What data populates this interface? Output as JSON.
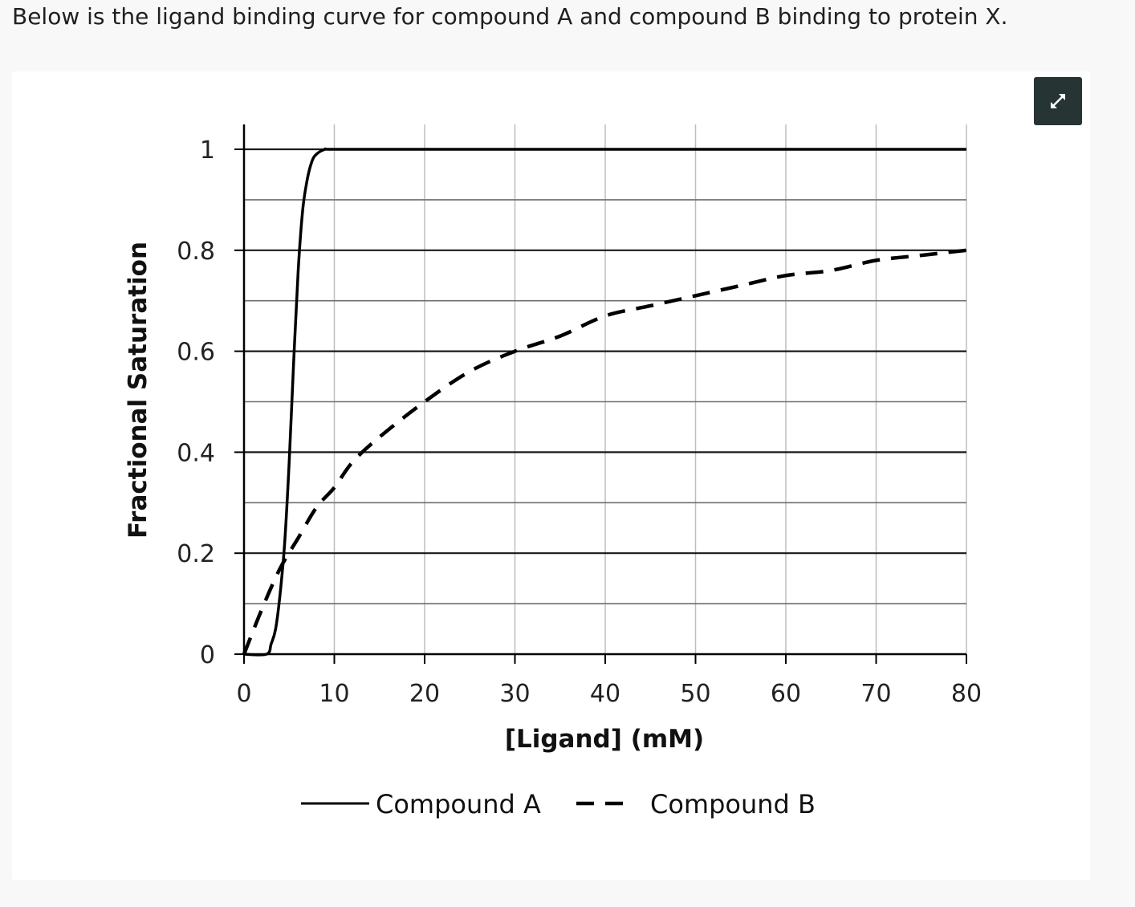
{
  "question": {
    "text": "Below is the ligand binding curve for compound A and compound B binding to protein X."
  },
  "expand_button": {
    "icon": "expand-arrows-icon"
  },
  "chart_data": {
    "type": "line",
    "xlabel": "[Ligand] (mM)",
    "ylabel": "Fractional Saturation",
    "xlim": [
      0,
      80
    ],
    "ylim": [
      0,
      1
    ],
    "x_ticks": [
      "0",
      "10",
      "20",
      "30",
      "40",
      "50",
      "60",
      "70",
      "80"
    ],
    "y_ticks": [
      "0",
      "0.2",
      "0.4",
      "0.6",
      "0.8",
      "1"
    ],
    "grid": true,
    "legend_position": "bottom",
    "series": [
      {
        "name": "Compound A",
        "style": "solid",
        "color": "#000000",
        "x": [
          0,
          2.5,
          3,
          3.5,
          4,
          4.5,
          5,
          5.5,
          6,
          6.5,
          7,
          7.5,
          8,
          9,
          10,
          20,
          30,
          40,
          50,
          60,
          70,
          80
        ],
        "y": [
          0,
          0,
          0.02,
          0.05,
          0.12,
          0.22,
          0.38,
          0.58,
          0.76,
          0.88,
          0.94,
          0.975,
          0.99,
          1,
          1,
          1,
          1,
          1,
          1,
          1,
          1,
          1
        ]
      },
      {
        "name": "Compound B",
        "style": "dashed",
        "color": "#000000",
        "x": [
          0,
          2,
          4,
          6,
          8,
          10,
          12,
          15,
          20,
          25,
          30,
          35,
          40,
          45,
          50,
          55,
          60,
          65,
          70,
          75,
          80
        ],
        "y": [
          0,
          0.09,
          0.17,
          0.23,
          0.29,
          0.33,
          0.38,
          0.43,
          0.5,
          0.56,
          0.6,
          0.63,
          0.67,
          0.69,
          0.71,
          0.73,
          0.75,
          0.76,
          0.78,
          0.79,
          0.8
        ]
      }
    ]
  }
}
